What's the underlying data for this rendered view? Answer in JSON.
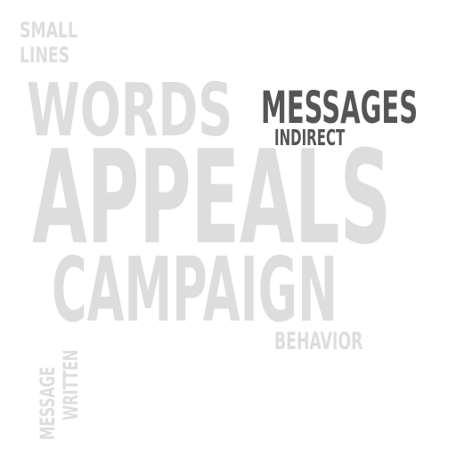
{
  "words": [
    {
      "key": "small",
      "text": "SMALL",
      "color": "#dddddd"
    },
    {
      "key": "lines",
      "text": "LINES",
      "color": "#dddddd"
    },
    {
      "key": "words",
      "text": "WORDS",
      "color": "#dddddd"
    },
    {
      "key": "messages",
      "text": "MESSAGES",
      "color": "#555555"
    },
    {
      "key": "indirect",
      "text": "INDIRECT",
      "color": "#555555"
    },
    {
      "key": "appeals",
      "text": "APPEALS",
      "color": "#dddddd"
    },
    {
      "key": "campaign",
      "text": "CAMPAIGN",
      "color": "#dddddd"
    },
    {
      "key": "behavior",
      "text": "BEHAVIOR",
      "color": "#dddddd"
    },
    {
      "key": "written",
      "text": "WRITTEN",
      "color": "#dddddd"
    },
    {
      "key": "message",
      "text": "MESSAGE",
      "color": "#dddddd"
    }
  ]
}
